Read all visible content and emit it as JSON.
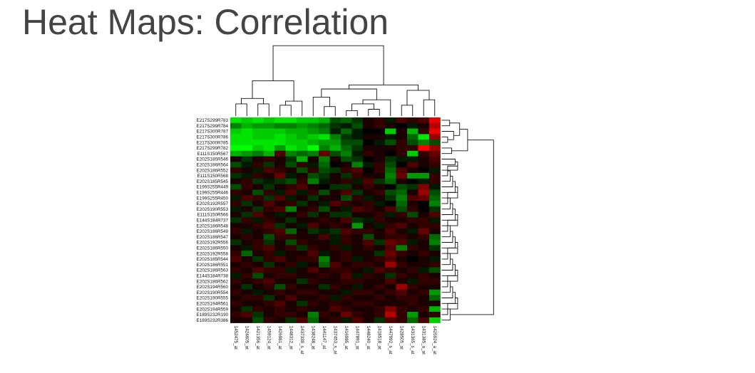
{
  "title": "Heat Maps: Correlation",
  "chart_data": {
    "type": "heatmap",
    "title": "Heat Maps: Correlation",
    "color_scale": {
      "low": "#00ff00",
      "mid": "#000000",
      "high": "#ff0000"
    },
    "rows": [
      "E217S299R783",
      "E217S299R784",
      "E217S300R787",
      "E217S300R786",
      "E217S300R785",
      "E217S299R782",
      "E111S150R567",
      "E202S185R546",
      "E202S186R564",
      "E202S186R552",
      "E111S150R568",
      "E202S185R545",
      "E199S255R449",
      "E199S255R446",
      "E199S255R450",
      "E202S192R557",
      "E202S190R553",
      "E111S150R566",
      "E144S184R737",
      "E202S186R548",
      "E202S186R549",
      "E202S186R547",
      "E202S192R556",
      "E202S186R550",
      "E202S192R558",
      "E202S185R544",
      "E202S186R551",
      "E202S186R563",
      "E144S184R738",
      "E202S186R562",
      "E202S194R560",
      "E202S190R554",
      "E202S190R555",
      "E202S194R561",
      "E202S194R559",
      "E189S232R190",
      "E189S232R386"
    ],
    "columns": [
      "1452475_at",
      "1424605_at",
      "1421356_at",
      "1459124_at",
      "1426981_at",
      "1448312_at",
      "1437339_s_at",
      "1438248_at",
      "1441147_at",
      "1437453_s_at",
      "1416985_at",
      "1447891_at",
      "1448240_at",
      "1418518_at",
      "1447992_s_at",
      "1428505_at",
      "1431365_s_at",
      "1431385_a_at",
      "1425924_a_at"
    ],
    "values": [
      [
        -0.9,
        -0.8,
        -0.9,
        -0.8,
        -0.9,
        -0.9,
        -0.8,
        -0.8,
        -0.7,
        -0.3,
        -0.4,
        -0.2,
        0.1,
        0.2,
        -0.1,
        0.3,
        0.2,
        0.3,
        0.9
      ],
      [
        -0.5,
        -0.7,
        -0.6,
        -0.6,
        -0.5,
        -0.5,
        -0.6,
        -0.5,
        -0.4,
        -0.2,
        -0.1,
        -0.3,
        0.1,
        0.2,
        0.1,
        0.0,
        -0.1,
        0.1,
        0.7
      ],
      [
        -0.8,
        -0.9,
        -0.8,
        -0.8,
        -0.8,
        -0.7,
        -0.7,
        -0.6,
        -0.5,
        -0.1,
        -0.4,
        -0.1,
        0.0,
        0.0,
        -0.8,
        0.1,
        -0.7,
        0.2,
        0.9
      ],
      [
        -0.9,
        -0.9,
        -0.8,
        -0.8,
        -0.9,
        -0.8,
        -0.7,
        -0.8,
        -0.9,
        -0.5,
        -0.2,
        -0.1,
        0.1,
        0.1,
        -0.1,
        0.1,
        -0.4,
        -0.9,
        0.6
      ],
      [
        -0.9,
        -0.9,
        -0.9,
        -0.9,
        -0.9,
        -0.8,
        -0.8,
        -0.7,
        -0.6,
        -0.6,
        -0.3,
        -0.3,
        0.0,
        -0.1,
        -0.3,
        0.2,
        -0.3,
        -0.5,
        -0.3
      ],
      [
        -1.0,
        -1.0,
        -0.8,
        -0.9,
        -0.6,
        -0.9,
        -0.8,
        -1.0,
        -0.5,
        -0.7,
        -0.4,
        -0.2,
        0.1,
        0.1,
        0.1,
        0.2,
        0.2,
        1.0,
        0.6
      ],
      [
        -0.7,
        -0.6,
        -0.5,
        -0.7,
        0.3,
        -0.5,
        -0.4,
        -0.5,
        0.4,
        -0.3,
        -0.5,
        -0.1,
        0.2,
        0.1,
        0.0,
        0.2,
        -0.8,
        0.2,
        0.4
      ],
      [
        0.1,
        -0.2,
        0.1,
        0.2,
        0.1,
        -0.2,
        -0.7,
        0.1,
        -0.5,
        0.1,
        -0.3,
        -0.2,
        0.0,
        0.1,
        -0.2,
        -0.1,
        -0.1,
        0.1,
        0.3
      ],
      [
        -0.3,
        -0.1,
        0.2,
        -0.2,
        0.1,
        -0.3,
        0.2,
        -0.1,
        -0.4,
        0.0,
        0.1,
        -0.5,
        -0.1,
        0.2,
        -0.3,
        0.0,
        0.3,
        0.1,
        0.2
      ],
      [
        0.2,
        0.1,
        -0.1,
        0.3,
        0.2,
        0.1,
        -0.3,
        0.2,
        -0.3,
        -0.2,
        0.2,
        0.3,
        0.0,
        0.2,
        -0.4,
        0.3,
        0.1,
        0.0,
        -0.1
      ],
      [
        -0.2,
        -0.1,
        0.2,
        0.1,
        0.4,
        -0.1,
        0.1,
        -0.3,
        -0.2,
        0.1,
        -0.2,
        0.2,
        0.1,
        0.1,
        -0.5,
        0.4,
        -0.6,
        -0.6,
        0.2
      ],
      [
        0.1,
        0.2,
        -0.2,
        -0.1,
        -0.2,
        -0.3,
        0.2,
        -0.5,
        -0.1,
        0.1,
        0.2,
        -0.1,
        0.3,
        -0.2,
        -0.4,
        0.1,
        0.0,
        -0.1,
        0.2
      ],
      [
        -0.3,
        0.2,
        0.1,
        -0.2,
        0.1,
        0.2,
        0.3,
        0.1,
        0.0,
        -0.2,
        -0.2,
        0.1,
        0.2,
        0.1,
        0.0,
        -0.3,
        -0.2,
        0.5,
        -0.1
      ],
      [
        0.2,
        0.1,
        -0.3,
        0.2,
        -0.1,
        0.3,
        -0.1,
        0.2,
        -0.3,
        0.1,
        0.3,
        -0.2,
        0.1,
        0.2,
        -0.3,
        -0.4,
        0.1,
        0.6,
        -0.3
      ],
      [
        -0.1,
        0.3,
        0.2,
        -0.2,
        0.3,
        -0.1,
        0.1,
        -0.2,
        0.1,
        0.1,
        -0.3,
        0.2,
        -0.1,
        0.1,
        -0.2,
        -0.5,
        0.3,
        0.4,
        -0.4
      ],
      [
        0.2,
        -0.2,
        0.1,
        0.3,
        0.1,
        0.2,
        -0.2,
        0.1,
        -0.1,
        0.3,
        0.2,
        0.1,
        0.2,
        -0.1,
        0.0,
        -0.4,
        0.1,
        0.0,
        -0.5
      ],
      [
        -0.1,
        0.1,
        -0.2,
        0.2,
        0.3,
        -0.5,
        0.1,
        0.2,
        -0.3,
        0.1,
        -0.1,
        0.3,
        0.2,
        0.1,
        0.3,
        -0.3,
        0.2,
        0.0,
        -0.2
      ],
      [
        0.1,
        -0.2,
        0.3,
        0.1,
        -0.1,
        0.1,
        0.2,
        -0.2,
        0.1,
        -0.2,
        -0.2,
        0.1,
        0.1,
        0.2,
        -0.1,
        0.2,
        -0.3,
        0.1,
        0.3
      ],
      [
        -0.2,
        0.2,
        -0.1,
        0.2,
        0.1,
        -0.2,
        0.1,
        0.1,
        0.2,
        0.1,
        0.3,
        -0.2,
        -0.1,
        0.2,
        0.1,
        0.1,
        0.2,
        0.2,
        -0.1
      ],
      [
        0.1,
        0.1,
        0.2,
        0.3,
        -0.2,
        0.1,
        -0.1,
        0.3,
        0.1,
        0.2,
        0.1,
        -0.6,
        0.1,
        -0.1,
        0.2,
        0.3,
        0.1,
        0.2,
        0.2
      ],
      [
        0.2,
        -0.1,
        0.1,
        0.2,
        0.3,
        -0.4,
        0.1,
        -0.2,
        -0.1,
        -0.2,
        0.3,
        0.2,
        0.2,
        0.1,
        0.3,
        0.1,
        -0.1,
        0.4,
        0.1
      ],
      [
        0.1,
        0.2,
        0.1,
        -0.3,
        0.2,
        0.2,
        0.1,
        0.1,
        0.3,
        -0.1,
        0.2,
        0.1,
        -0.3,
        0.1,
        0.2,
        0.2,
        0.1,
        0.2,
        -0.4
      ],
      [
        -0.2,
        0.1,
        0.2,
        -0.2,
        0.1,
        -0.3,
        0.2,
        0.1,
        0.1,
        -0.1,
        0.2,
        0.1,
        0.3,
        -0.2,
        0.4,
        0.3,
        -0.1,
        0.1,
        -0.5
      ],
      [
        0.1,
        -0.1,
        0.2,
        0.3,
        0.1,
        0.2,
        -0.2,
        0.2,
        0.1,
        0.2,
        -0.1,
        0.1,
        0.2,
        0.1,
        0.3,
        -0.5,
        0.2,
        0.1,
        -0.2
      ],
      [
        0.2,
        -0.4,
        0.1,
        0.2,
        -0.1,
        0.1,
        0.1,
        0.3,
        -0.1,
        0.1,
        0.2,
        0.1,
        0.1,
        -0.2,
        0.4,
        0.2,
        0.1,
        0.2,
        0.1
      ],
      [
        0.3,
        0.1,
        -0.2,
        0.2,
        0.3,
        0.1,
        0.2,
        0.2,
        -0.5,
        0.1,
        0.2,
        -0.1,
        0.1,
        0.2,
        0.3,
        0.1,
        0.0,
        0.1,
        -0.1
      ],
      [
        0.1,
        0.2,
        0.1,
        -0.2,
        0.1,
        0.2,
        -0.1,
        0.1,
        -0.4,
        0.3,
        0.1,
        0.2,
        0.2,
        0.1,
        0.6,
        0.2,
        0.1,
        0.1,
        0.2
      ],
      [
        0.2,
        0.1,
        0.3,
        0.2,
        0.2,
        -0.1,
        0.1,
        0.3,
        0.1,
        0.2,
        0.2,
        0.1,
        -0.1,
        0.3,
        0.2,
        0.1,
        0.2,
        -0.1,
        -0.3
      ],
      [
        -0.1,
        0.2,
        -0.3,
        0.1,
        0.2,
        0.2,
        0.1,
        0.1,
        0.2,
        0.1,
        0.3,
        -0.1,
        0.2,
        0.1,
        -0.2,
        0.2,
        0.1,
        0.2,
        0.1
      ],
      [
        0.2,
        0.1,
        0.2,
        0.3,
        0.1,
        0.1,
        -0.2,
        0.2,
        0.1,
        0.1,
        0.2,
        0.2,
        0.1,
        0.1,
        0.3,
        0.1,
        -0.1,
        0.2,
        0.2
      ],
      [
        0.1,
        -0.2,
        0.1,
        0.2,
        -0.3,
        0.2,
        0.1,
        0.1,
        -0.2,
        0.2,
        0.1,
        -0.1,
        0.1,
        0.2,
        0.1,
        0.6,
        0.2,
        0.1,
        0.1
      ],
      [
        0.2,
        0.1,
        -0.1,
        0.1,
        0.2,
        0.1,
        0.2,
        0.2,
        0.1,
        0.1,
        -0.1,
        0.2,
        0.2,
        0.1,
        0.2,
        0.3,
        0.1,
        0.2,
        -0.6
      ],
      [
        0.1,
        0.2,
        0.2,
        -0.2,
        0.1,
        0.3,
        0.1,
        0.1,
        0.2,
        -0.1,
        0.2,
        0.1,
        0.1,
        0.2,
        0.1,
        0.2,
        0.2,
        0.1,
        -0.4
      ],
      [
        0.2,
        0.1,
        0.1,
        0.2,
        0.3,
        0.1,
        -0.2,
        0.2,
        0.1,
        0.2,
        0.1,
        0.2,
        0.2,
        0.1,
        0.1,
        0.1,
        0.2,
        0.1,
        0.1
      ],
      [
        0.1,
        -0.2,
        0.2,
        0.1,
        0.2,
        0.1,
        0.2,
        0.1,
        0.1,
        0.3,
        0.2,
        0.1,
        0.1,
        0.2,
        0.5,
        0.2,
        0.1,
        0.2,
        -0.7
      ],
      [
        0.2,
        0.3,
        -0.2,
        0.1,
        0.2,
        0.2,
        0.1,
        -0.5,
        0.2,
        0.1,
        0.4,
        0.2,
        0.1,
        0.2,
        0.7,
        0.2,
        -0.6,
        0.1,
        0.2
      ],
      [
        0.1,
        0.1,
        -0.3,
        0.2,
        0.1,
        -0.2,
        0.3,
        -0.4,
        0.1,
        0.2,
        -0.1,
        0.3,
        0.1,
        -0.2,
        0.3,
        0.2,
        -0.4,
        0.3,
        -0.8
      ]
    ],
    "column_dendrogram": true,
    "row_dendrogram": true
  }
}
